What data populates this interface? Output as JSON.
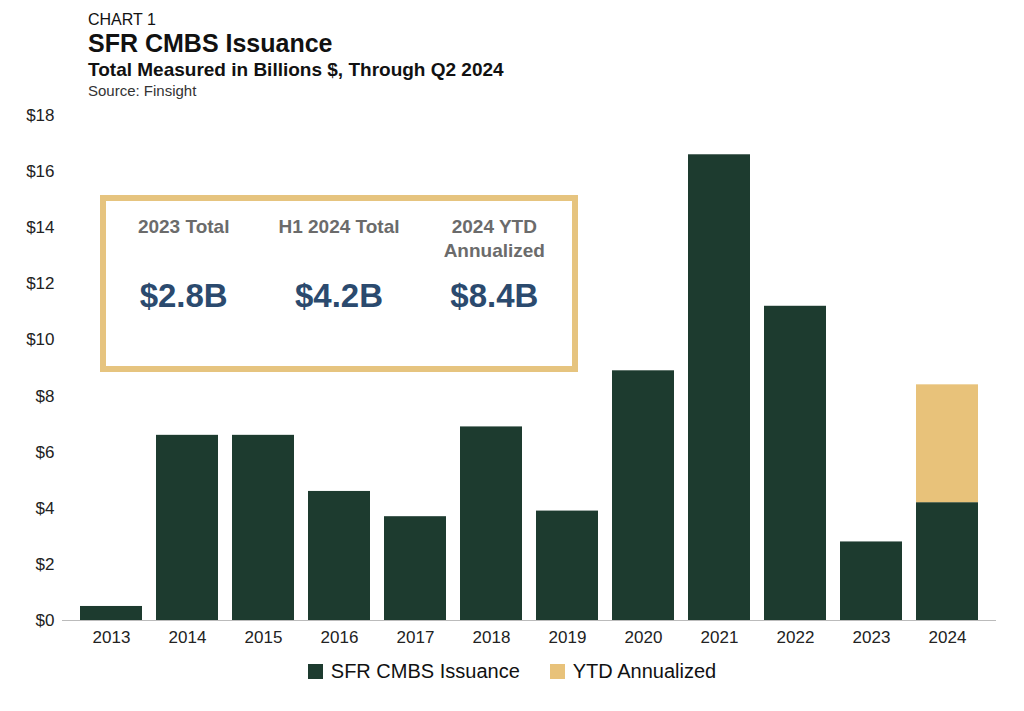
{
  "chart_data": {
    "type": "bar",
    "kicker": "CHART 1",
    "title": "SFR CMBS Issuance",
    "subtitle": "Total Measured in Billions $, Through Q2 2024",
    "source": "Source: Finsight",
    "categories": [
      "2013",
      "2014",
      "2015",
      "2016",
      "2017",
      "2018",
      "2019",
      "2020",
      "2021",
      "2022",
      "2023",
      "2024"
    ],
    "series": [
      {
        "name": "SFR CMBS Issuance",
        "color": "#1d3b2f",
        "values": [
          0.5,
          6.6,
          6.6,
          4.6,
          3.7,
          6.9,
          3.9,
          8.9,
          16.6,
          11.2,
          2.8,
          4.2
        ]
      },
      {
        "name": "YTD Annualized",
        "color": "#e8c27a",
        "values": [
          null,
          null,
          null,
          null,
          null,
          null,
          null,
          null,
          null,
          null,
          null,
          4.2
        ]
      }
    ],
    "stacked": true,
    "ylim": [
      0,
      18
    ],
    "yticks": [
      {
        "value": 0,
        "label": "$0"
      },
      {
        "value": 2,
        "label": "$2"
      },
      {
        "value": 4,
        "label": "$4"
      },
      {
        "value": 6,
        "label": "$6"
      },
      {
        "value": 8,
        "label": "$8"
      },
      {
        "value": 10,
        "label": "$10"
      },
      {
        "value": 12,
        "label": "$12"
      },
      {
        "value": 14,
        "label": "$14"
      },
      {
        "value": 16,
        "label": "$16"
      },
      {
        "value": 18,
        "label": "$18"
      }
    ],
    "grid": false,
    "legend": "bottom",
    "annotations": [
      {
        "label": "2023 Total",
        "text": "$2.8B"
      },
      {
        "label": "H1 2024 Total",
        "text": "$4.2B"
      },
      {
        "label": "2024 YTD Annualized",
        "text": "$8.4B"
      }
    ]
  }
}
